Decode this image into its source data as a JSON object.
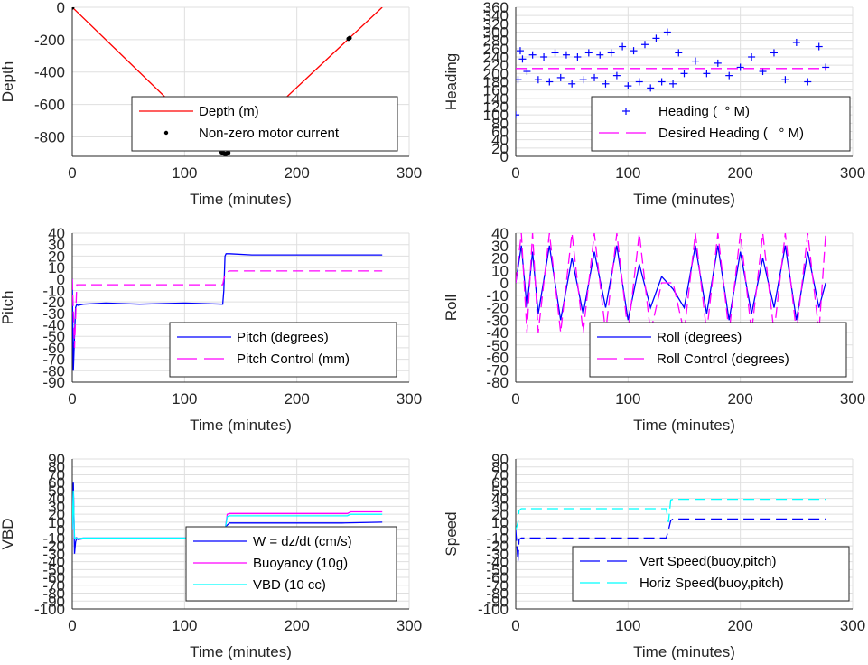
{
  "chart_data": [
    {
      "id": "depth",
      "type": "line",
      "xlabel": "Time (minutes)",
      "ylabel": "Depth",
      "xlim": [
        0,
        300
      ],
      "ylim": [
        -920,
        0
      ],
      "xticks": [
        0,
        100,
        200,
        300
      ],
      "yticks": [
        0,
        -200,
        -400,
        -600,
        -800
      ],
      "grid": true,
      "legend_position": "bottom-center",
      "series": [
        {
          "name": "Depth (m)",
          "style": "line",
          "color": "#ff0000",
          "x": [
            0,
            135,
            137,
            276
          ],
          "y": [
            0,
            -905,
            -905,
            0
          ]
        },
        {
          "name": "Non-zero motor current",
          "style": "dot",
          "color": "#000000",
          "x": [
            0,
            133,
            134,
            135,
            136,
            137,
            138,
            139,
            246,
            247
          ],
          "y": [
            -2,
            -895,
            -900,
            -903,
            -905,
            -905,
            -902,
            -898,
            -195,
            -190
          ]
        }
      ]
    },
    {
      "id": "heading",
      "type": "scatter",
      "xlabel": "Time (minutes)",
      "ylabel": "Heading",
      "xlim": [
        0,
        300
      ],
      "ylim": [
        0,
        360
      ],
      "xticks": [
        0,
        100,
        200,
        300
      ],
      "yticks": [
        0,
        20,
        40,
        60,
        80,
        100,
        120,
        140,
        160,
        180,
        200,
        220,
        240,
        260,
        280,
        300,
        320,
        340,
        360
      ],
      "grid": true,
      "legend_position": "bottom-right",
      "series": [
        {
          "name": "Heading (  ° M)",
          "style": "plus",
          "color": "#0000ff",
          "x": [
            0,
            2,
            4,
            6,
            10,
            15,
            20,
            25,
            30,
            35,
            40,
            45,
            50,
            55,
            60,
            65,
            70,
            75,
            80,
            85,
            90,
            95,
            100,
            105,
            110,
            115,
            120,
            125,
            130,
            135,
            140,
            145,
            150,
            160,
            170,
            180,
            190,
            200,
            210,
            220,
            230,
            240,
            250,
            260,
            270,
            276
          ],
          "y": [
            100,
            185,
            255,
            235,
            205,
            245,
            185,
            240,
            180,
            250,
            190,
            245,
            175,
            240,
            185,
            250,
            190,
            245,
            175,
            250,
            195,
            265,
            170,
            255,
            180,
            270,
            165,
            285,
            180,
            300,
            175,
            250,
            200,
            230,
            200,
            225,
            195,
            215,
            240,
            205,
            250,
            185,
            275,
            180,
            265,
            215
          ]
        },
        {
          "name": "Desired Heading (   ° M)",
          "style": "dash",
          "color": "#ff00ff",
          "x": [
            0,
            276
          ],
          "y": [
            212,
            212
          ]
        }
      ]
    },
    {
      "id": "pitch",
      "type": "line",
      "xlabel": "Time (minutes)",
      "ylabel": "Pitch",
      "xlim": [
        0,
        300
      ],
      "ylim": [
        -90,
        40
      ],
      "xticks": [
        0,
        100,
        200,
        300
      ],
      "yticks": [
        40,
        30,
        20,
        10,
        0,
        -10,
        -20,
        -30,
        -40,
        -50,
        -60,
        -70,
        -80,
        -90
      ],
      "grid": true,
      "legend_position": "bottom-right",
      "series": [
        {
          "name": "Pitch (degrees)",
          "style": "line",
          "color": "#0000ff",
          "x": [
            0,
            1,
            2,
            3,
            4,
            5,
            10,
            30,
            60,
            100,
            134,
            135,
            136,
            137,
            140,
            160,
            200,
            240,
            276
          ],
          "y": [
            0,
            -80,
            -50,
            -25,
            -22,
            -23,
            -22,
            -21,
            -22,
            -21,
            -22,
            -10,
            20,
            22,
            22,
            21,
            21,
            21,
            21
          ]
        },
        {
          "name": "Pitch Control (mm)",
          "style": "dash",
          "color": "#ff00ff",
          "x": [
            0,
            2,
            4,
            10,
            134,
            135,
            137,
            140,
            276
          ],
          "y": [
            0,
            -60,
            -5,
            -5,
            -5,
            0,
            6,
            7,
            7
          ]
        }
      ]
    },
    {
      "id": "roll",
      "type": "line",
      "xlabel": "Time (minutes)",
      "ylabel": "Roll",
      "xlim": [
        0,
        300
      ],
      "ylim": [
        -80,
        40
      ],
      "xticks": [
        0,
        100,
        200,
        300
      ],
      "yticks": [
        40,
        30,
        20,
        10,
        0,
        -10,
        -20,
        -30,
        -40,
        -50,
        -60,
        -70,
        -80
      ],
      "grid": true,
      "legend_position": "bottom-right",
      "series": [
        {
          "name": "Roll (degrees)",
          "style": "line",
          "color": "#0000ff",
          "x": [
            0,
            5,
            10,
            15,
            20,
            30,
            40,
            50,
            60,
            70,
            80,
            90,
            100,
            110,
            120,
            130,
            140,
            150,
            160,
            170,
            180,
            190,
            200,
            210,
            220,
            230,
            240,
            250,
            260,
            270,
            276
          ],
          "y": [
            0,
            30,
            -20,
            25,
            -25,
            30,
            -30,
            20,
            -25,
            25,
            -20,
            30,
            -30,
            15,
            -20,
            5,
            -5,
            -20,
            30,
            -25,
            30,
            -30,
            25,
            -25,
            20,
            -20,
            30,
            -30,
            25,
            -20,
            0
          ]
        },
        {
          "name": "Roll Control (degrees)",
          "style": "dash",
          "color": "#ff00ff",
          "x": [
            0,
            5,
            10,
            15,
            20,
            30,
            40,
            50,
            60,
            70,
            80,
            90,
            100,
            110,
            120,
            130,
            140,
            150,
            160,
            170,
            180,
            190,
            200,
            210,
            220,
            230,
            240,
            250,
            260,
            270,
            276
          ],
          "y": [
            0,
            40,
            -40,
            40,
            -40,
            40,
            -40,
            40,
            -40,
            40,
            -40,
            40,
            -40,
            40,
            -40,
            0,
            0,
            -40,
            40,
            -40,
            40,
            -40,
            40,
            -40,
            40,
            -40,
            40,
            -40,
            40,
            -40,
            40
          ]
        }
      ]
    },
    {
      "id": "vbd",
      "type": "line",
      "xlabel": "Time (minutes)",
      "ylabel": "VBD",
      "xlim": [
        0,
        300
      ],
      "ylim": [
        -100,
        90
      ],
      "xticks": [
        0,
        100,
        200,
        300
      ],
      "yticks": [
        90,
        80,
        70,
        60,
        50,
        40,
        30,
        20,
        10,
        0,
        -10,
        -20,
        -30,
        -40,
        -50,
        -60,
        -70,
        -80,
        -90,
        -100
      ],
      "tick_labels_note": "overlapping labels drawn as printed",
      "grid": true,
      "legend_position": "bottom-right",
      "series": [
        {
          "name": "W = dz/dt (cm/s)",
          "style": "line",
          "color": "#0000ff",
          "x": [
            0,
            1,
            2,
            3,
            4,
            5,
            10,
            60,
            100,
            134,
            135,
            137,
            140,
            160,
            200,
            240,
            276
          ],
          "y": [
            0,
            60,
            -30,
            -15,
            -10,
            -12,
            -11,
            -11,
            -11,
            -11,
            -5,
            5,
            9,
            9,
            9,
            9,
            10
          ]
        },
        {
          "name": "Buoyancy (10g)",
          "style": "line",
          "color": "#ff00ff",
          "x": [
            0,
            1,
            2,
            3,
            5,
            10,
            100,
            134,
            136,
            138,
            140,
            200,
            245,
            248,
            276
          ],
          "y": [
            0,
            50,
            -10,
            -10,
            -11,
            -10,
            -10,
            -10,
            0,
            20,
            21,
            21,
            21,
            23,
            23
          ]
        },
        {
          "name": "VBD (10 cc)",
          "style": "line",
          "color": "#00ffff",
          "x": [
            0,
            1,
            2,
            3,
            5,
            10,
            100,
            134,
            136,
            138,
            140,
            200,
            245,
            248,
            276
          ],
          "y": [
            0,
            50,
            -10,
            -10,
            -11,
            -10,
            -10,
            -10,
            0,
            17,
            18,
            18,
            18,
            20,
            20
          ]
        }
      ]
    },
    {
      "id": "speed",
      "type": "line",
      "xlabel": "Time (minutes)",
      "ylabel": "Speed",
      "xlim": [
        0,
        300
      ],
      "ylim": [
        -100,
        90
      ],
      "xticks": [
        0,
        100,
        200,
        300
      ],
      "yticks": [
        90,
        80,
        70,
        60,
        50,
        40,
        30,
        20,
        10,
        0,
        -10,
        -20,
        -30,
        -40,
        -50,
        -60,
        -70,
        -80,
        -90,
        -100
      ],
      "grid": true,
      "legend_position": "bottom-right",
      "series": [
        {
          "name": "Vert Speed(buoy,pitch)",
          "style": "dash",
          "color": "#0000ff",
          "x": [
            0,
            2,
            3,
            5,
            10,
            100,
            134,
            136,
            138,
            140,
            200,
            276
          ],
          "y": [
            0,
            -40,
            -12,
            -10,
            -10,
            -10,
            -10,
            0,
            12,
            14,
            14,
            14
          ]
        },
        {
          "name": "Horiz Speed(buoy,pitch)",
          "style": "dash",
          "color": "#00ffff",
          "x": [
            0,
            2,
            3,
            5,
            10,
            100,
            134,
            136,
            138,
            140,
            200,
            276
          ],
          "y": [
            0,
            10,
            25,
            27,
            27,
            27,
            27,
            10,
            38,
            39,
            39,
            39
          ]
        }
      ]
    }
  ]
}
